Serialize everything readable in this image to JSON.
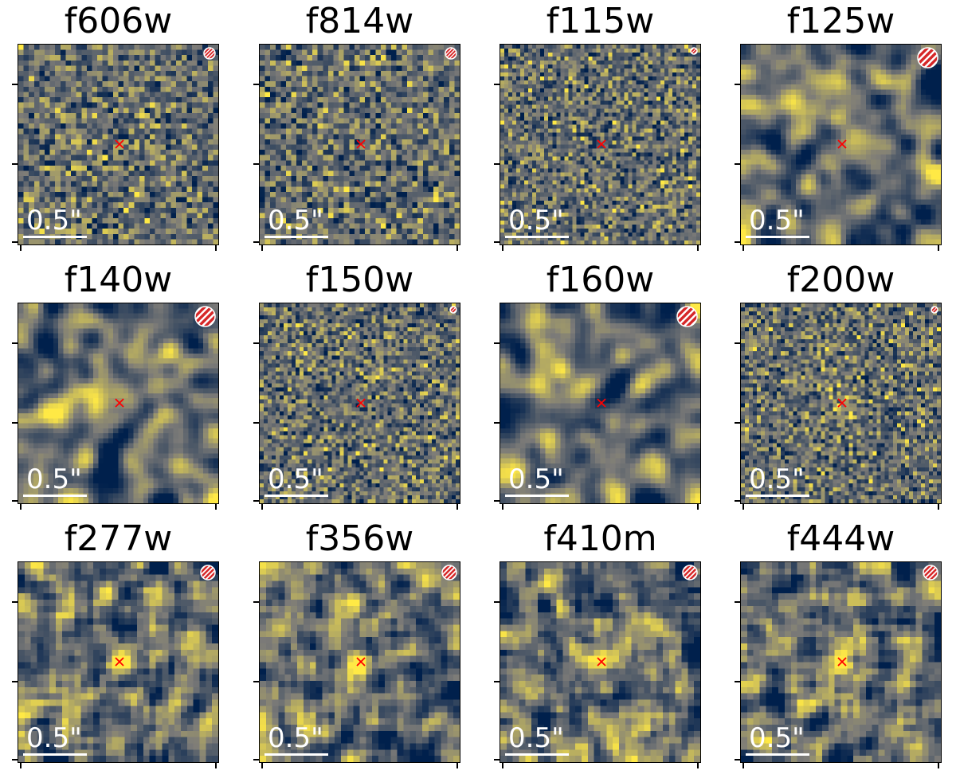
{
  "figure": {
    "scalebar_label": "0.5\"",
    "colors": {
      "low": "#00204c",
      "mid": "#7c7b78",
      "high": "#ffe945",
      "marker": "#ff0000",
      "psf": "#d62728"
    },
    "panels": [
      {
        "filter": "f606w",
        "psf_size": "small",
        "source_level": "none",
        "texture": "fine"
      },
      {
        "filter": "f814w",
        "psf_size": "small",
        "source_level": "none",
        "texture": "fine"
      },
      {
        "filter": "f115w",
        "psf_size": "tiny",
        "source_level": "none",
        "texture": "veryfine"
      },
      {
        "filter": "f125w",
        "psf_size": "large",
        "source_level": "weak",
        "texture": "smooth"
      },
      {
        "filter": "f140w",
        "psf_size": "large",
        "source_level": "weak",
        "texture": "smooth"
      },
      {
        "filter": "f150w",
        "psf_size": "tiny",
        "source_level": "none",
        "texture": "veryfine"
      },
      {
        "filter": "f160w",
        "psf_size": "large",
        "source_level": "none",
        "texture": "smooth"
      },
      {
        "filter": "f200w",
        "psf_size": "tiny",
        "source_level": "faint",
        "texture": "veryfine"
      },
      {
        "filter": "f277w",
        "psf_size": "medium",
        "source_level": "strong",
        "texture": "medium"
      },
      {
        "filter": "f356w",
        "psf_size": "medium",
        "source_level": "strong",
        "texture": "medium"
      },
      {
        "filter": "f410m",
        "psf_size": "medium",
        "source_level": "strong",
        "texture": "medium"
      },
      {
        "filter": "f444w",
        "psf_size": "medium",
        "source_level": "strong",
        "texture": "medium"
      }
    ]
  }
}
